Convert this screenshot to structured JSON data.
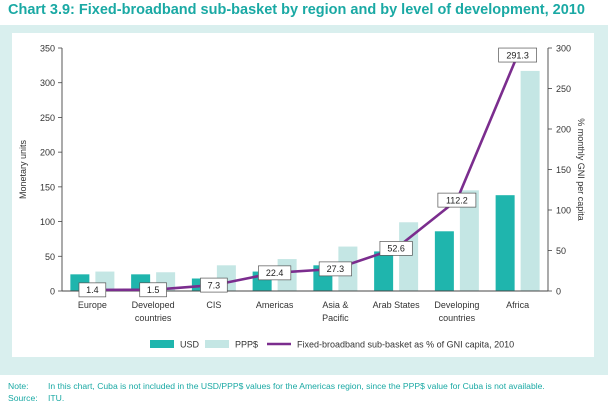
{
  "title": "Chart 3.9: Fixed-broadband sub-basket by region and by level of development, 2010",
  "colors": {
    "usd": "#1fb5ad",
    "ppp": "#c4e6e4",
    "line": "#7b2d8e",
    "text": "#1aa9a4",
    "panel": "#d9efee"
  },
  "chart_data": {
    "type": "bar",
    "categories": [
      [
        "Europe"
      ],
      [
        "Developed",
        "countries"
      ],
      [
        "CIS"
      ],
      [
        "Americas"
      ],
      [
        "Asia &",
        "Pacific"
      ],
      [
        "Arab States"
      ],
      [
        "Developing",
        "countries"
      ],
      [
        "Africa"
      ]
    ],
    "series": [
      {
        "name": "USD",
        "type": "bar",
        "axis": "left",
        "values": [
          24,
          24,
          18,
          28,
          37,
          57,
          86,
          138
        ]
      },
      {
        "name": "PPP$",
        "type": "bar",
        "axis": "left",
        "values": [
          28,
          27,
          37,
          46,
          64,
          99,
          145,
          317
        ]
      },
      {
        "name": "Fixed-broadband sub-basket as % of GNI capita, 2010",
        "type": "line",
        "axis": "right",
        "values": [
          1.4,
          1.5,
          7.3,
          22.4,
          27.3,
          52.6,
          112.2,
          291.3
        ],
        "labels": [
          "1.4",
          "1.5",
          "7.3",
          "22.4",
          "27.3",
          "52.6",
          "112.2",
          "291.3"
        ]
      }
    ],
    "ylabel": "Monetary units",
    "y2label": "% monthly GNI per capita",
    "ylim": [
      0,
      350
    ],
    "y2lim": [
      0,
      300
    ],
    "yticks": [
      0,
      50,
      100,
      150,
      200,
      250,
      300,
      350
    ],
    "y2ticks": [
      0,
      50,
      100,
      150,
      200,
      250,
      300
    ],
    "legend_position": "bottom"
  },
  "notes": {
    "note_label": "Note:",
    "note_text": "In this chart, Cuba is not included in the USD/PPP$ values for the Americas region, since the PPP$ value for Cuba is not available.",
    "source_label": "Source:",
    "source_text": "ITU."
  }
}
